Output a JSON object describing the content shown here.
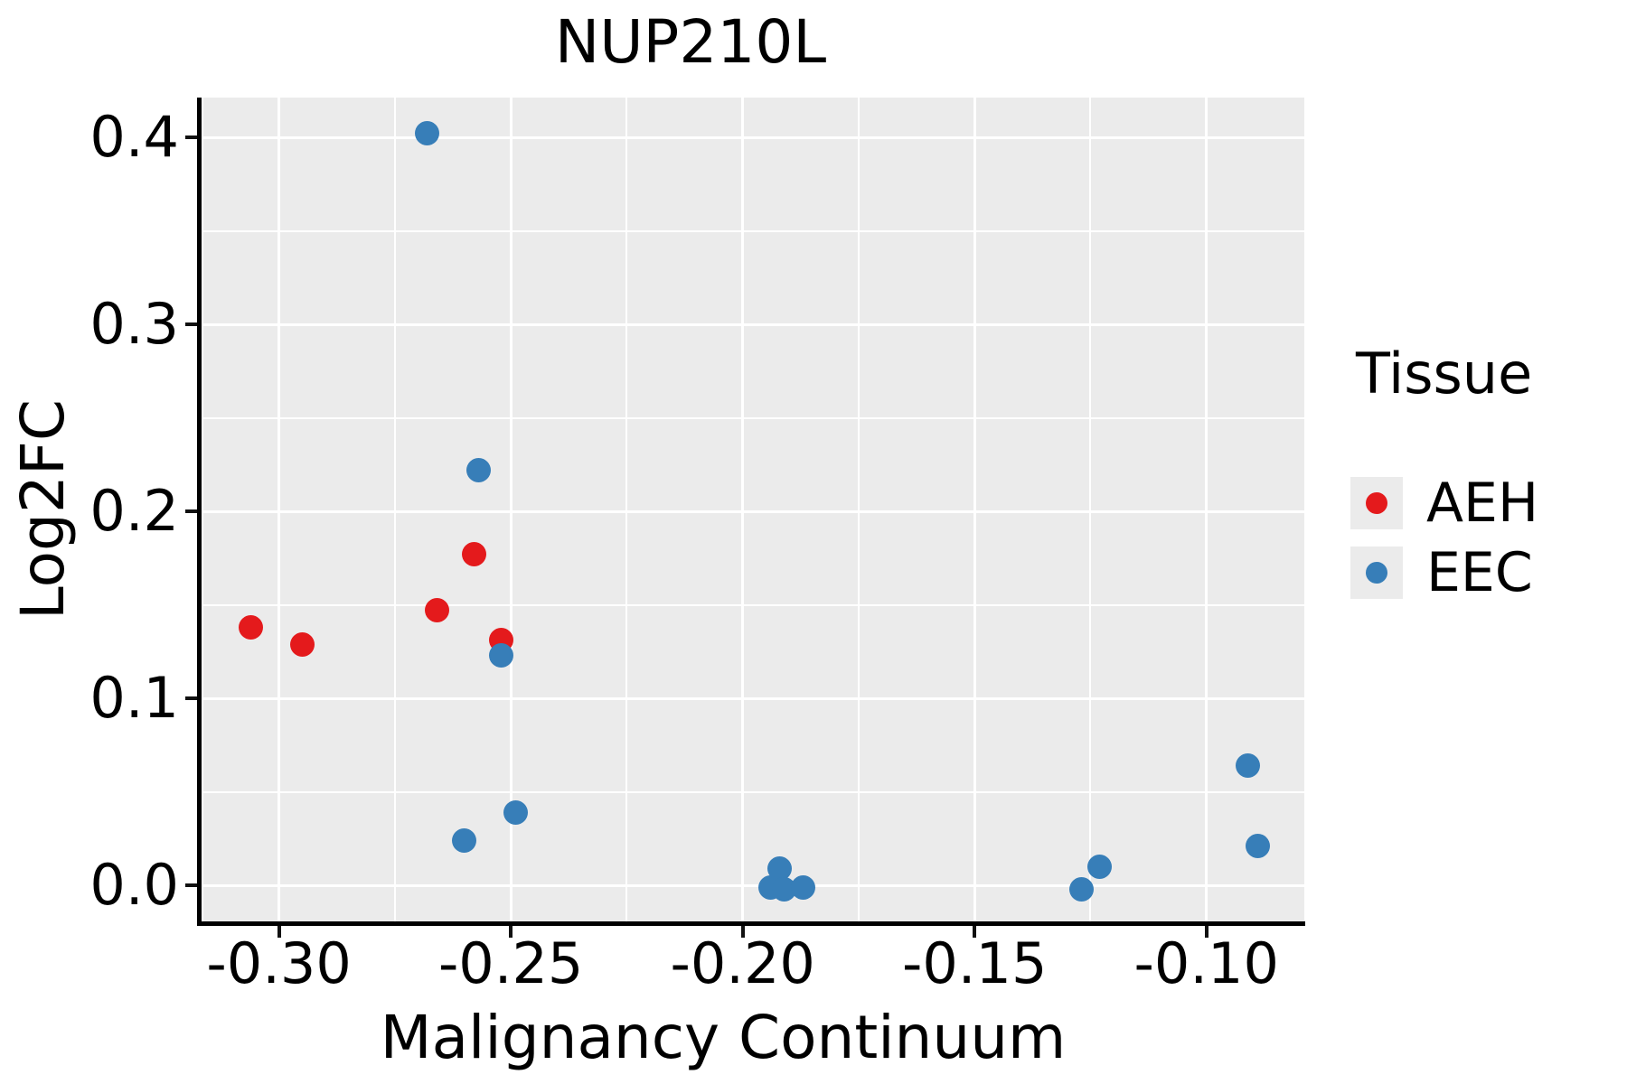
{
  "title": "NUP210L",
  "axes": {
    "x_label": "Malignancy Continuum",
    "y_label": "Log2FC"
  },
  "legend": {
    "title": "Tissue",
    "items": [
      {
        "label": "AEH",
        "color": "#E41A1C"
      },
      {
        "label": "EEC",
        "color": "#377EB8"
      }
    ]
  },
  "chart_data": {
    "type": "scatter",
    "title": "NUP210L",
    "xlabel": "Malignancy Continuum",
    "ylabel": "Log2FC",
    "xlim": [
      -0.3163,
      -0.0789
    ],
    "ylim": [
      -0.0193,
      0.4213
    ],
    "x_major_ticks": [
      -0.3,
      -0.25,
      -0.2,
      -0.15,
      -0.1
    ],
    "x_tick_labels": [
      "-0.30",
      "-0.25",
      "-0.20",
      "-0.15",
      "-0.10"
    ],
    "x_minor_ticks": [
      -0.275,
      -0.225,
      -0.175,
      -0.125
    ],
    "y_major_ticks": [
      0.0,
      0.1,
      0.2,
      0.3,
      0.4
    ],
    "y_tick_labels": [
      "0.0",
      "0.1",
      "0.2",
      "0.3",
      "0.4"
    ],
    "y_minor_ticks": [
      0.05,
      0.15,
      0.25,
      0.35
    ],
    "grid": true,
    "legend_position": "right",
    "panel_background": "#EBEBEB",
    "grid_color": "#FFFFFF",
    "series": [
      {
        "name": "AEH",
        "color": "#E41A1C",
        "points": [
          [
            -0.306,
            0.138
          ],
          [
            -0.295,
            0.129
          ],
          [
            -0.266,
            0.147
          ],
          [
            -0.258,
            0.177
          ],
          [
            -0.252,
            0.131
          ]
        ]
      },
      {
        "name": "EEC",
        "color": "#377EB8",
        "points": [
          [
            -0.268,
            0.402
          ],
          [
            -0.257,
            0.222
          ],
          [
            -0.252,
            0.123
          ],
          [
            -0.26,
            0.024
          ],
          [
            -0.249,
            0.039
          ],
          [
            -0.194,
            -0.001
          ],
          [
            -0.192,
            0.009
          ],
          [
            -0.191,
            -0.002
          ],
          [
            -0.187,
            -0.001
          ],
          [
            -0.127,
            -0.002
          ],
          [
            -0.123,
            0.01
          ],
          [
            -0.091,
            0.064
          ],
          [
            -0.089,
            0.021
          ]
        ]
      }
    ]
  }
}
